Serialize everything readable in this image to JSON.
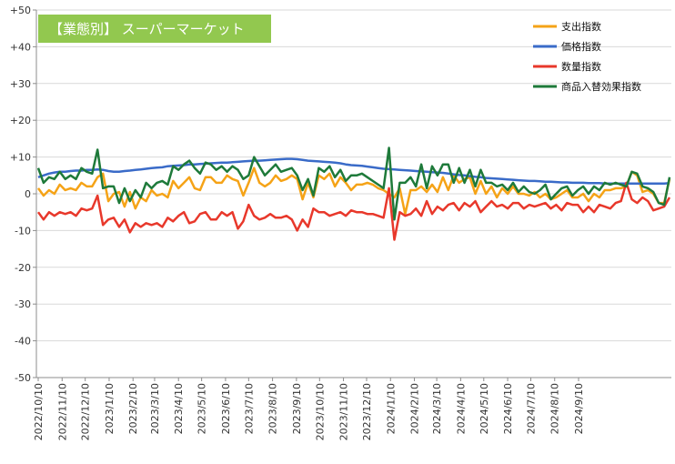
{
  "chart_data": {
    "type": "line",
    "title": "【業態別】 スーパーマーケット",
    "xlabel": "",
    "ylabel": "",
    "ylim": [
      -50,
      50
    ],
    "yticks": [
      50,
      40,
      30,
      20,
      10,
      0,
      -10,
      -20,
      -30,
      -40,
      -50
    ],
    "ytick_labels": [
      "+50",
      "+40",
      "+30",
      "+20",
      "+10",
      "0",
      "-10",
      "-20",
      "-30",
      "-40",
      "-50"
    ],
    "x_start": "2022-10-10",
    "x_end": "2024-09-29",
    "xtick_labels": [
      "2022/10/10",
      "2022/11/10",
      "2022/12/10",
      "2023/1/10",
      "2023/2/10",
      "2023/3/10",
      "2023/4/10",
      "2023/5/10",
      "2023/6/10",
      "2023/7/10",
      "2023/8/10",
      "2023/9/10",
      "2023/10/10",
      "2023/11/10",
      "2023/12/10",
      "2024/1/10",
      "2024/2/10",
      "2024/3/10",
      "2024/4/10",
      "2024/5/10",
      "2024/6/10",
      "2024/7/10",
      "2024/8/10",
      "2024/9/10"
    ],
    "x_step": "weekly",
    "grid": "horizontal",
    "legend_position": "top-right",
    "colors": {
      "title_bg": "#92c84f",
      "axis": "#8c8c8c",
      "grid": "#d9d9d9"
    },
    "series": [
      {
        "name": "支出指数",
        "color": "#f5a317",
        "values": [
          1.5,
          -0.5,
          1.0,
          0.0,
          2.5,
          1.0,
          1.5,
          1.0,
          3.0,
          2.0,
          2.0,
          4.5,
          5.5,
          -2.0,
          0.0,
          0.5,
          -3.5,
          0.5,
          -4.0,
          -1.0,
          -2.0,
          1.0,
          -0.5,
          0.0,
          -1.0,
          3.5,
          1.5,
          3.0,
          4.5,
          1.5,
          1.0,
          4.5,
          4.5,
          3.0,
          3.0,
          5.0,
          4.0,
          3.5,
          -0.5,
          3.0,
          7.0,
          3.0,
          2.0,
          3.0,
          5.0,
          3.5,
          4.0,
          5.0,
          4.0,
          -1.5,
          3.0,
          -1.0,
          5.0,
          4.0,
          5.5,
          2.0,
          4.5,
          3.0,
          1.0,
          2.5,
          2.5,
          3.0,
          2.5,
          1.5,
          1.0,
          0.0,
          -1.0,
          1.5,
          -5.5,
          1.0,
          1.0,
          2.0,
          0.5,
          2.5,
          0.5,
          4.5,
          1.0,
          5.0,
          3.0,
          4.0,
          4.5,
          0.0,
          3.5,
          0.0,
          2.0,
          -1.0,
          1.5,
          0.0,
          2.0,
          0.0,
          0.0,
          -0.5,
          0.5,
          -1.0,
          0.0,
          -1.5,
          -1.0,
          0.0,
          1.0,
          -1.0,
          -1.0,
          0.0,
          -2.0,
          0.0,
          -1.0,
          1.0,
          1.0,
          1.5,
          1.5,
          2.0,
          6.0,
          5.0,
          0.5,
          1.0,
          0.0,
          -2.5,
          -2.5,
          4.0
        ]
      },
      {
        "name": "価格指数",
        "color": "#3a6bc8",
        "values": [
          4.5,
          5.0,
          5.5,
          5.8,
          6.0,
          6.0,
          6.2,
          6.3,
          6.3,
          6.5,
          6.5,
          6.6,
          6.5,
          6.2,
          6.0,
          6.0,
          6.2,
          6.3,
          6.5,
          6.6,
          6.8,
          7.0,
          7.1,
          7.2,
          7.5,
          7.6,
          7.7,
          7.8,
          8.0,
          8.0,
          8.1,
          8.2,
          8.3,
          8.4,
          8.5,
          8.5,
          8.6,
          8.7,
          8.8,
          8.9,
          9.0,
          9.0,
          9.1,
          9.2,
          9.3,
          9.4,
          9.5,
          9.5,
          9.4,
          9.2,
          9.0,
          8.9,
          8.8,
          8.7,
          8.6,
          8.5,
          8.3,
          8.0,
          7.8,
          7.7,
          7.6,
          7.4,
          7.2,
          7.0,
          6.8,
          6.7,
          6.6,
          6.5,
          6.4,
          6.3,
          6.2,
          6.1,
          6.0,
          5.9,
          5.8,
          5.7,
          5.5,
          5.3,
          5.1,
          5.0,
          4.8,
          4.6,
          4.5,
          4.3,
          4.2,
          4.1,
          4.0,
          3.9,
          3.8,
          3.7,
          3.6,
          3.5,
          3.5,
          3.4,
          3.3,
          3.3,
          3.2,
          3.1,
          3.1,
          3.0,
          3.0,
          3.0,
          2.9,
          2.9,
          2.9,
          2.8,
          2.8,
          2.8,
          2.8,
          2.8,
          2.8,
          2.8,
          2.8,
          2.8,
          2.8,
          2.8,
          2.8,
          2.9
        ]
      },
      {
        "name": "数量指数",
        "color": "#e8382b",
        "values": [
          -5.0,
          -7.0,
          -5.0,
          -6.0,
          -5.0,
          -5.5,
          -5.0,
          -6.0,
          -4.0,
          -4.5,
          -4.0,
          -0.5,
          -8.5,
          -7.0,
          -6.5,
          -9.0,
          -7.0,
          -10.5,
          -8.0,
          -9.0,
          -8.0,
          -8.5,
          -8.0,
          -9.0,
          -6.5,
          -7.5,
          -6.0,
          -5.0,
          -8.0,
          -7.5,
          -5.5,
          -5.0,
          -7.0,
          -7.0,
          -5.0,
          -6.0,
          -5.0,
          -9.5,
          -7.5,
          -3.0,
          -6.0,
          -7.0,
          -6.5,
          -5.5,
          -6.5,
          -6.5,
          -6.0,
          -7.0,
          -10.0,
          -7.0,
          -9.0,
          -4.0,
          -5.0,
          -5.0,
          -6.0,
          -5.5,
          -5.0,
          -6.0,
          -4.5,
          -5.0,
          -5.0,
          -5.5,
          -5.5,
          -6.0,
          -6.5,
          1.5,
          -12.5,
          -5.0,
          -6.0,
          -5.5,
          -4.0,
          -6.0,
          -2.0,
          -5.5,
          -3.5,
          -4.5,
          -3.0,
          -2.5,
          -4.5,
          -2.5,
          -3.5,
          -2.0,
          -5.0,
          -3.5,
          -2.0,
          -3.5,
          -3.0,
          -4.0,
          -2.5,
          -2.5,
          -4.0,
          -3.0,
          -3.5,
          -3.0,
          -2.5,
          -4.0,
          -3.0,
          -4.5,
          -2.5,
          -3.0,
          -3.0,
          -5.0,
          -3.5,
          -5.0,
          -3.0,
          -3.5,
          -4.0,
          -2.5,
          -2.0,
          3.0,
          -1.5,
          -2.5,
          -1.0,
          -2.0,
          -4.5,
          -4.0,
          -3.5,
          -1.0
        ]
      },
      {
        "name": "商品入替効果指数",
        "color": "#1e7a3a",
        "values": [
          7.0,
          3.0,
          4.5,
          4.0,
          6.0,
          4.0,
          5.0,
          4.0,
          7.0,
          6.0,
          5.5,
          12.0,
          1.5,
          2.0,
          2.0,
          -2.5,
          1.5,
          -2.0,
          1.0,
          -1.0,
          3.0,
          1.5,
          3.0,
          3.5,
          2.5,
          7.5,
          6.5,
          8.0,
          9.0,
          7.0,
          5.5,
          8.5,
          8.0,
          6.5,
          7.5,
          6.0,
          7.5,
          6.5,
          4.0,
          5.0,
          10.0,
          7.5,
          5.0,
          6.5,
          8.0,
          6.0,
          6.5,
          7.0,
          5.0,
          1.0,
          4.0,
          -0.5,
          7.0,
          6.0,
          7.5,
          4.5,
          6.5,
          3.5,
          5.0,
          5.0,
          5.5,
          4.5,
          3.5,
          2.5,
          1.5,
          12.5,
          -7.0,
          3.0,
          3.0,
          4.5,
          2.0,
          8.0,
          1.5,
          7.5,
          5.0,
          8.0,
          8.0,
          3.0,
          7.0,
          3.0,
          6.5,
          2.0,
          6.5,
          3.0,
          3.0,
          2.0,
          2.5,
          1.0,
          3.0,
          0.5,
          2.0,
          0.5,
          0.0,
          1.0,
          2.5,
          -1.5,
          0.0,
          1.5,
          2.0,
          -0.5,
          1.0,
          2.0,
          0.0,
          2.0,
          1.0,
          3.0,
          2.5,
          3.0,
          2.5,
          2.0,
          6.0,
          5.5,
          2.0,
          1.5,
          0.5,
          -2.5,
          -3.0,
          4.5
        ]
      }
    ]
  }
}
